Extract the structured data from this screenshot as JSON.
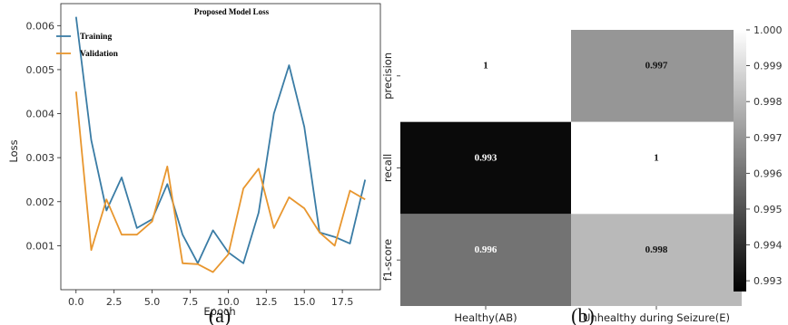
{
  "chart_data": [
    {
      "type": "line",
      "title": "Proposed Model Loss",
      "xlabel": "Epoch",
      "ylabel": "Loss",
      "xlim": [
        -1,
        20
      ],
      "ylim": [
        0,
        0.0065
      ],
      "xticks": [
        "0.0",
        "2.5",
        "5.0",
        "7.5",
        "10.0",
        "12.5",
        "15.0",
        "17.5"
      ],
      "yticks": [
        "0.001",
        "0.002",
        "0.003",
        "0.004",
        "0.005",
        "0.006"
      ],
      "legend": "top-left",
      "x": [
        0,
        1,
        2,
        3,
        4,
        5,
        6,
        7,
        8,
        9,
        10,
        11,
        12,
        13,
        14,
        15,
        16,
        17,
        18,
        19
      ],
      "series": [
        {
          "name": "Training",
          "color": "#3a7ca5",
          "values": [
            0.0062,
            0.0034,
            0.0018,
            0.00255,
            0.0014,
            0.0016,
            0.0024,
            0.00125,
            0.0006,
            0.00135,
            0.00085,
            0.0006,
            0.00175,
            0.004,
            0.0051,
            0.0037,
            0.0013,
            0.0012,
            0.00105,
            0.0025
          ]
        },
        {
          "name": "Validation",
          "color": "#e8962e",
          "values": [
            0.0045,
            0.0009,
            0.00205,
            0.00125,
            0.00125,
            0.00155,
            0.0028,
            0.0006,
            0.00058,
            0.0004,
            0.0008,
            0.0023,
            0.00275,
            0.0014,
            0.0021,
            0.00185,
            0.0013,
            0.001,
            0.00225,
            0.00205
          ]
        }
      ],
      "caption": "(a)"
    },
    {
      "type": "heatmap",
      "rows": [
        "precision",
        "recall",
        "f1-score"
      ],
      "columns": [
        "Healthy(AB)",
        "Unhealthy during Seizure(E)"
      ],
      "values": [
        [
          1,
          0.997
        ],
        [
          0.993,
          1
        ],
        [
          0.996,
          0.998
        ]
      ],
      "cell_labels": [
        [
          "1",
          "0.997"
        ],
        [
          "0.993",
          "1"
        ],
        [
          "0.996",
          "0.998"
        ]
      ],
      "colorbar_range": [
        0.9927,
        1.0
      ],
      "colorbar_ticks": [
        "1.000",
        "0.999",
        "0.998",
        "0.997",
        "0.996",
        "0.995",
        "0.994",
        "0.993"
      ],
      "colormap": "greys",
      "caption": "(b)"
    }
  ]
}
